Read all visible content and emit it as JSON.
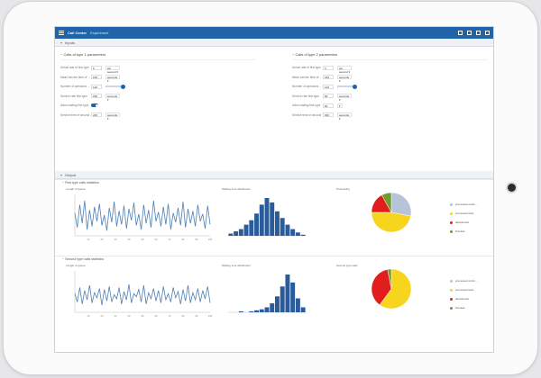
{
  "app": {
    "brand": "Call Center",
    "breadcrumb": "Experiment"
  },
  "inputs_header": "Inputs",
  "param_groups": [
    {
      "title": "Calls of type 1 parameters",
      "rows": [
        {
          "label": "Arrival rate of first type",
          "value": "6",
          "unit": "per second",
          "control": "unit"
        },
        {
          "label": "Mean service time of ...",
          "value": "160",
          "unit": "seconds",
          "control": "unit"
        },
        {
          "label": "Number of operators ...",
          "value": "140",
          "control": "slider"
        },
        {
          "label": "Service rate first type",
          "value": "180",
          "unit": "seconds",
          "control": "unit"
        },
        {
          "label": "Allow waiting first type",
          "control": "toggle"
        },
        {
          "label": "Service time of second",
          "value": "200",
          "unit": "seconds",
          "control": "unit"
        }
      ]
    },
    {
      "title": "Calls of type 2 parameters",
      "rows": [
        {
          "label": "Arrival rate of first type",
          "value": "3",
          "unit": "per second",
          "control": "unit"
        },
        {
          "label": "Mean service time of ...",
          "value": "150",
          "unit": "seconds",
          "control": "unit"
        },
        {
          "label": "Number of operators ...",
          "value": "110",
          "control": "slider"
        },
        {
          "label": "Service rate first type",
          "value": "90",
          "unit": "seconds",
          "control": "unit"
        },
        {
          "label": "Allow waiting first type",
          "value": "50",
          "control": "unit-mini"
        },
        {
          "label": "Service time of second",
          "value": "300",
          "unit": "seconds",
          "control": "unit"
        }
      ]
    }
  ],
  "output_header": "Output",
  "stats_blocks": [
    {
      "title": "First type calls statistics",
      "line_label": "Length of queue",
      "hist_label": "Waiting time distribution",
      "pie_label": "Processing",
      "line_values": [
        22,
        8,
        30,
        12,
        34,
        6,
        25,
        9,
        28,
        14,
        31,
        10,
        20,
        5,
        27,
        13,
        33,
        9,
        24,
        11,
        29,
        7,
        26,
        15,
        32,
        10,
        21,
        6,
        30,
        12,
        25,
        8,
        34,
        14,
        23,
        9,
        28,
        11,
        31,
        6,
        22,
        13,
        27,
        10,
        33,
        8,
        26,
        12,
        24,
        9,
        30,
        14,
        21,
        7,
        29,
        11
      ],
      "hist_values": [
        2,
        4,
        6,
        10,
        14,
        20,
        28,
        34,
        30,
        22,
        16,
        10,
        6,
        3,
        1
      ],
      "pie_slices": [
        {
          "value": 28,
          "color": "#b7c3d9"
        },
        {
          "value": 47,
          "color": "#f6d51c"
        },
        {
          "value": 17,
          "color": "#e21d1d"
        },
        {
          "value": 8,
          "color": "#6c9f2a"
        }
      ],
      "legend": [
        {
          "label": "processed ontim...",
          "color": "#b7c3d9"
        },
        {
          "label": "processed later",
          "color": "#f6d51c"
        },
        {
          "label": "abandoned",
          "color": "#e21d1d"
        },
        {
          "label": "Pended",
          "color": "#6c9f2a"
        }
      ]
    },
    {
      "title": "Second type calls statistics",
      "line_label": "Length of queue",
      "hist_label": "Waiting time distribution",
      "pie_label": "Second type calls",
      "line_values": [
        18,
        10,
        24,
        8,
        21,
        12,
        26,
        9,
        19,
        14,
        23,
        7,
        22,
        11,
        25,
        10,
        17,
        13,
        24,
        8,
        20,
        12,
        27,
        9,
        18,
        15,
        22,
        10,
        26,
        8,
        19,
        13,
        23,
        11,
        21,
        9,
        25,
        12,
        18,
        10,
        24,
        14,
        20,
        8,
        22,
        11,
        26,
        9,
        19,
        12,
        23,
        10,
        21,
        13,
        25,
        9
      ],
      "hist_values": [
        0,
        0,
        1,
        0,
        1,
        2,
        3,
        5,
        9,
        16,
        26,
        38,
        30,
        14,
        5
      ],
      "pie_slices": [
        {
          "value": 60,
          "color": "#f6d51c"
        },
        {
          "value": 37,
          "color": "#e21d1d"
        },
        {
          "value": 3,
          "color": "#6c9f2a"
        }
      ],
      "legend": [
        {
          "label": "processed ontim...",
          "color": "#b7c3d9"
        },
        {
          "label": "processed later",
          "color": "#f6d51c"
        },
        {
          "label": "abandoned",
          "color": "#e21d1d"
        },
        {
          "label": "Pended",
          "color": "#6c9f2a"
        }
      ]
    }
  ],
  "x_ticks": [
    "10",
    "20",
    "30",
    "40",
    "50",
    "60",
    "70",
    "80",
    "90",
    "100"
  ]
}
